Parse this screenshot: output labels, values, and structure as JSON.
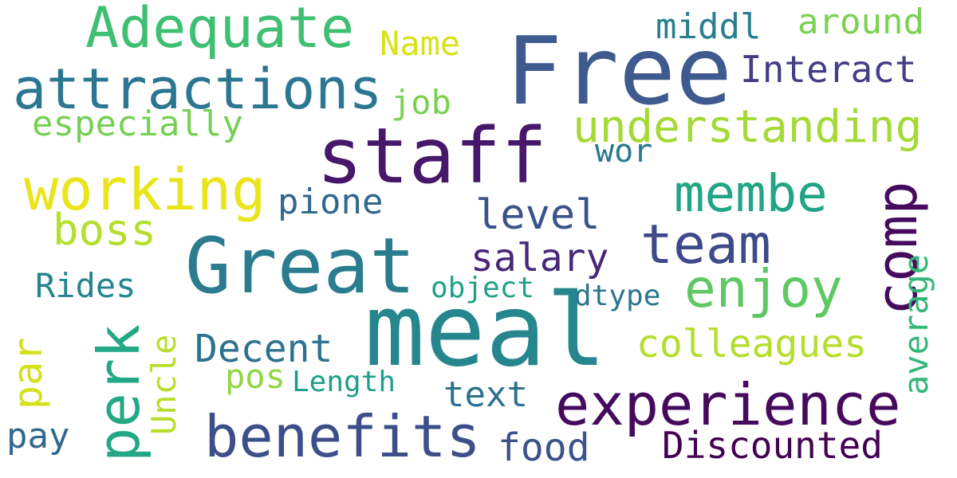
{
  "words": {
    "free": {
      "text": "Free",
      "color": "#3e5a8f"
    },
    "staff": {
      "text": "staff",
      "color": "#47176a"
    },
    "meal": {
      "text": "meal",
      "color": "#26868e"
    },
    "great": {
      "text": "Great",
      "color": "#2a7c8e"
    },
    "adequate": {
      "text": "Adequate",
      "color": "#3fbf72"
    },
    "attractions": {
      "text": "attractions",
      "color": "#2b7690"
    },
    "working": {
      "text": "working",
      "color": "#e9e51a"
    },
    "benefits": {
      "text": "benefits",
      "color": "#3c4f8a"
    },
    "experience": {
      "text": "experience",
      "color": "#460a5d"
    },
    "team": {
      "text": "team",
      "color": "#3d4b8a"
    },
    "comp": {
      "text": "comp",
      "color": "#460b5e"
    },
    "enjoy": {
      "text": "enjoy",
      "color": "#5ec962"
    },
    "membe": {
      "text": "membe",
      "color": "#21a585"
    },
    "understanding": {
      "text": "understanding",
      "color": "#a5da36"
    },
    "perk": {
      "text": "perk",
      "color": "#22a884"
    },
    "middl": {
      "text": "middl",
      "color": "#277f8e"
    },
    "around": {
      "text": "around",
      "color": "#7ad151"
    },
    "interact": {
      "text": "Interact",
      "color": "#433e85"
    },
    "name": {
      "text": "Name",
      "color": "#d8e219"
    },
    "job": {
      "text": "job",
      "color": "#7ad151"
    },
    "especially": {
      "text": "especially",
      "color": "#75d054"
    },
    "wor": {
      "text": "wor",
      "color": "#2a788e"
    },
    "pione": {
      "text": "pione",
      "color": "#31688e"
    },
    "level": {
      "text": "level",
      "color": "#3b528b"
    },
    "boss": {
      "text": "boss",
      "color": "#b5de2b"
    },
    "salary": {
      "text": "salary",
      "color": "#482878"
    },
    "rides": {
      "text": "Rides",
      "color": "#25858e"
    },
    "object": {
      "text": "object",
      "color": "#1fa187"
    },
    "dtype": {
      "text": "dtype",
      "color": "#2a768e"
    },
    "decent": {
      "text": "Decent",
      "color": "#2c728e"
    },
    "colleagues": {
      "text": "colleagues",
      "color": "#b5de2b"
    },
    "average": {
      "text": "average",
      "color": "#35b779"
    },
    "uncle": {
      "text": "Uncle",
      "color": "#b8de29"
    },
    "par": {
      "text": "par",
      "color": "#d2e21b"
    },
    "pos": {
      "text": "pos",
      "color": "#90d743"
    },
    "length": {
      "text": "Length",
      "color": "#1f9e89"
    },
    "text": {
      "text": "text",
      "color": "#2c728e"
    },
    "pay": {
      "text": "pay",
      "color": "#31688e"
    },
    "food": {
      "text": "food",
      "color": "#3b528b"
    },
    "discounted": {
      "text": "Discounted",
      "color": "#440154"
    }
  }
}
